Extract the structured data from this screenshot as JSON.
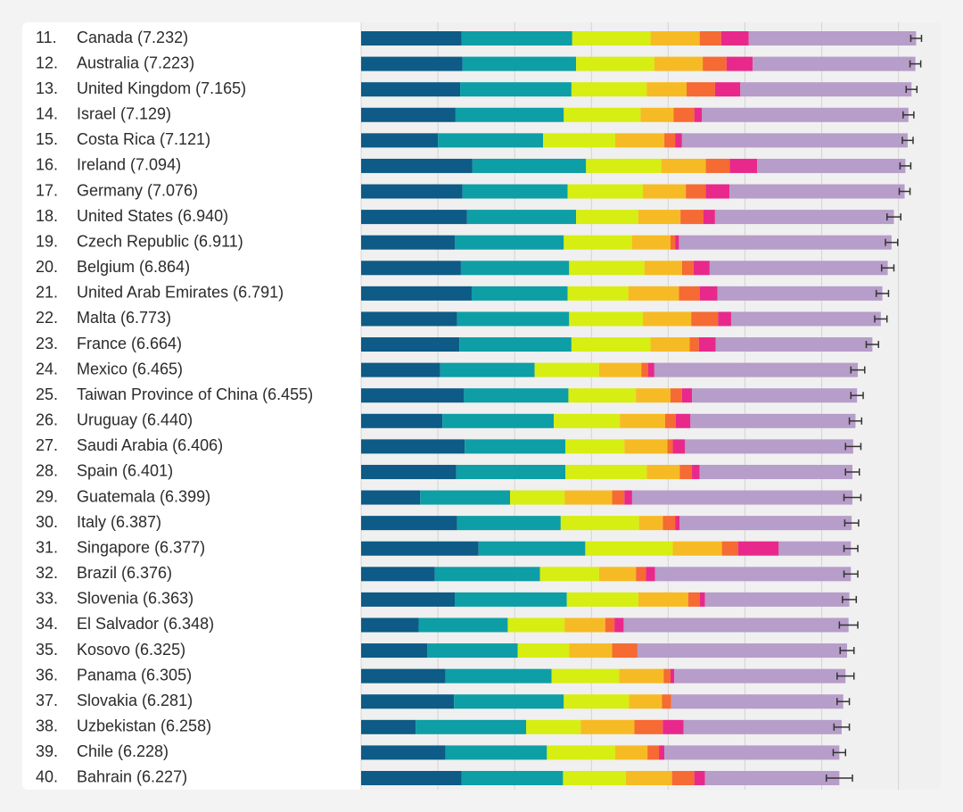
{
  "chart_data": {
    "type": "stacked-bar-horizontal",
    "ranks": [
      "11.",
      "12.",
      "13.",
      "14.",
      "15.",
      "16.",
      "17.",
      "18.",
      "19.",
      "20.",
      "21.",
      "22.",
      "23.",
      "24.",
      "25.",
      "26.",
      "27.",
      "28.",
      "29.",
      "30.",
      "31.",
      "32.",
      "33.",
      "34.",
      "35.",
      "36.",
      "37.",
      "38.",
      "39.",
      "40."
    ],
    "categories": [
      "Canada (7.232)",
      "Australia (7.223)",
      "United Kingdom (7.165)",
      "Israel (7.129)",
      "Costa Rica (7.121)",
      "Ireland (7.094)",
      "Germany (7.076)",
      "United States (6.940)",
      "Czech Republic (6.911)",
      "Belgium (6.864)",
      "United Arab Emirates (6.791)",
      "Malta (6.773)",
      "France (6.664)",
      "Mexico (6.465)",
      "Taiwan Province of China (6.455)",
      "Uruguay (6.440)",
      "Saudi Arabia (6.406)",
      "Spain (6.401)",
      "Guatemala (6.399)",
      "Italy (6.387)",
      "Singapore (6.377)",
      "Brazil (6.376)",
      "Slovenia (6.363)",
      "El Salvador (6.348)",
      "Kosovo (6.325)",
      "Panama (6.305)",
      "Slovakia (6.281)",
      "Uzbekistan (6.258)",
      "Chile (6.228)",
      "Bahrain (6.227)"
    ],
    "series": [
      {
        "color": "#0d5b86",
        "values": [
          1.31,
          1.32,
          1.29,
          1.23,
          1.0,
          1.45,
          1.32,
          1.38,
          1.22,
          1.3,
          1.44,
          1.25,
          1.28,
          1.03,
          1.34,
          1.06,
          1.35,
          1.24,
          0.77,
          1.25,
          1.53,
          0.96,
          1.22,
          0.75,
          0.86,
          1.1,
          1.21,
          0.71,
          1.1,
          1.31
        ]
      },
      {
        "color": "#0e9ea5",
        "values": [
          1.44,
          1.48,
          1.45,
          1.41,
          1.37,
          1.48,
          1.37,
          1.42,
          1.42,
          1.41,
          1.25,
          1.46,
          1.46,
          1.23,
          1.36,
          1.45,
          1.31,
          1.42,
          1.17,
          1.35,
          1.39,
          1.37,
          1.46,
          1.16,
          1.18,
          1.38,
          1.43,
          1.44,
          1.32,
          1.32
        ]
      },
      {
        "color": "#d6ee12",
        "values": [
          1.02,
          1.02,
          0.98,
          1.0,
          0.94,
          0.98,
          0.98,
          0.81,
          0.89,
          0.98,
          0.79,
          0.96,
          1.03,
          0.84,
          0.88,
          0.86,
          0.77,
          1.06,
          0.71,
          1.02,
          1.14,
          0.77,
          0.93,
          0.74,
          0.67,
          0.88,
          0.85,
          0.71,
          0.89,
          0.82
        ]
      },
      {
        "color": "#f6bb24",
        "values": [
          0.64,
          0.63,
          0.52,
          0.43,
          0.64,
          0.58,
          0.56,
          0.55,
          0.5,
          0.49,
          0.66,
          0.63,
          0.51,
          0.55,
          0.45,
          0.59,
          0.56,
          0.43,
          0.62,
          0.31,
          0.64,
          0.48,
          0.65,
          0.53,
          0.56,
          0.58,
          0.43,
          0.7,
          0.42,
          0.6
        ]
      },
      {
        "color": "#f66a33",
        "values": [
          0.28,
          0.31,
          0.37,
          0.27,
          0.14,
          0.31,
          0.26,
          0.3,
          0.06,
          0.15,
          0.27,
          0.35,
          0.12,
          0.09,
          0.15,
          0.14,
          0.07,
          0.16,
          0.16,
          0.16,
          0.21,
          0.13,
          0.15,
          0.12,
          0.33,
          0.09,
          0.12,
          0.37,
          0.15,
          0.29
        ]
      },
      {
        "color": "#e8298b",
        "values": [
          0.36,
          0.34,
          0.33,
          0.1,
          0.09,
          0.36,
          0.31,
          0.15,
          0.05,
          0.21,
          0.23,
          0.17,
          0.22,
          0.08,
          0.13,
          0.19,
          0.16,
          0.1,
          0.1,
          0.06,
          0.53,
          0.12,
          0.07,
          0.12,
          0.0,
          0.05,
          0.0,
          0.27,
          0.07,
          0.14
        ]
      },
      {
        "color": "#b79dc9",
        "values": [
          2.18,
          2.12,
          2.23,
          2.69,
          2.94,
          1.93,
          2.28,
          2.33,
          2.77,
          2.32,
          2.15,
          1.95,
          2.04,
          2.65,
          2.15,
          2.15,
          2.19,
          1.99,
          2.87,
          2.24,
          0.94,
          2.55,
          1.88,
          2.93,
          2.73,
          2.23,
          2.24,
          2.06,
          2.28,
          1.75
        ]
      }
    ],
    "errors": [
      0.07,
      0.07,
      0.07,
      0.07,
      0.07,
      0.07,
      0.07,
      0.09,
      0.08,
      0.08,
      0.08,
      0.08,
      0.08,
      0.09,
      0.08,
      0.08,
      0.1,
      0.09,
      0.11,
      0.09,
      0.09,
      0.09,
      0.09,
      0.12,
      0.09,
      0.11,
      0.08,
      0.1,
      0.08,
      0.17
    ],
    "error_color": "#333333",
    "xlim": [
      0,
      7.55
    ],
    "xticks": [
      0,
      1,
      2,
      3,
      4,
      5,
      6,
      7
    ],
    "grid": true
  }
}
